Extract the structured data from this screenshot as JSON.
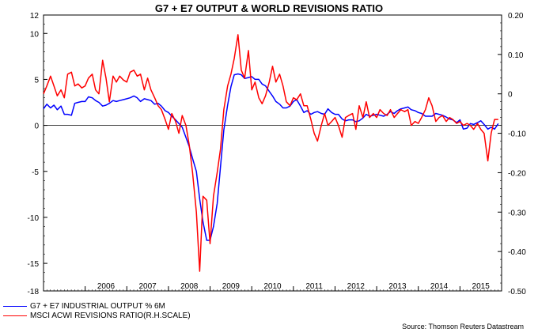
{
  "chart_data": {
    "type": "line",
    "title": "G7 + E7 OUTPUT & WORLD REVISIONS RATIO",
    "source": "Source: Thomson Reuters Datastream",
    "x_labels": [
      "2006",
      "2007",
      "2008",
      "2009",
      "2010",
      "2011",
      "2012",
      "2013",
      "2014",
      "2015"
    ],
    "x_range": [
      2005.0,
      2016.0
    ],
    "left_axis": {
      "ticks": [
        "12",
        "10",
        "5",
        "0",
        "-5",
        "-10",
        "-15",
        "-18"
      ],
      "tick_values": [
        12,
        10,
        5,
        0,
        -5,
        -10,
        -15,
        -18
      ],
      "range": [
        -18,
        12
      ]
    },
    "right_axis": {
      "ticks": [
        "0.20",
        "0.10",
        "0",
        "-0.10",
        "-0.20",
        "-0.30",
        "-0.40",
        "-0.50"
      ],
      "tick_values": [
        0.2,
        0.1,
        0,
        -0.1,
        -0.2,
        -0.3,
        -0.4,
        -0.5
      ],
      "range": [
        -0.5,
        0.2
      ]
    },
    "zero_line": true,
    "legend_position": "bottom-left",
    "series": [
      {
        "name": "G7 + E7 INDUSTRIAL OUTPUT % 6M",
        "axis": "left",
        "color": "#0000ff",
        "points": [
          [
            2005.0,
            1.8
          ],
          [
            2005.08,
            2.3
          ],
          [
            2005.17,
            1.9
          ],
          [
            2005.25,
            2.2
          ],
          [
            2005.33,
            1.7
          ],
          [
            2005.42,
            2.1
          ],
          [
            2005.5,
            1.2
          ],
          [
            2005.58,
            1.2
          ],
          [
            2005.67,
            1.1
          ],
          [
            2005.75,
            2.4
          ],
          [
            2005.83,
            2.5
          ],
          [
            2005.92,
            2.6
          ],
          [
            2006.0,
            2.6
          ],
          [
            2006.08,
            3.1
          ],
          [
            2006.17,
            3.0
          ],
          [
            2006.25,
            2.7
          ],
          [
            2006.33,
            2.5
          ],
          [
            2006.42,
            2.1
          ],
          [
            2006.5,
            2.2
          ],
          [
            2006.58,
            2.4
          ],
          [
            2006.67,
            2.7
          ],
          [
            2006.75,
            2.6
          ],
          [
            2006.83,
            2.7
          ],
          [
            2006.92,
            2.8
          ],
          [
            2007.0,
            2.9
          ],
          [
            2007.08,
            3.0
          ],
          [
            2007.17,
            3.2
          ],
          [
            2007.25,
            3.0
          ],
          [
            2007.33,
            2.6
          ],
          [
            2007.42,
            2.9
          ],
          [
            2007.5,
            2.8
          ],
          [
            2007.58,
            2.7
          ],
          [
            2007.67,
            2.3
          ],
          [
            2007.75,
            2.4
          ],
          [
            2007.83,
            2.1
          ],
          [
            2007.92,
            1.6
          ],
          [
            2008.0,
            1.4
          ],
          [
            2008.08,
            1.0
          ],
          [
            2008.17,
            0.6
          ],
          [
            2008.25,
            0.2
          ],
          [
            2008.33,
            -0.2
          ],
          [
            2008.42,
            -1.3
          ],
          [
            2008.5,
            -2.3
          ],
          [
            2008.58,
            -3.6
          ],
          [
            2008.67,
            -5.0
          ],
          [
            2008.75,
            -8.0
          ],
          [
            2008.83,
            -10.5
          ],
          [
            2008.92,
            -12.5
          ],
          [
            2009.0,
            -12.5
          ],
          [
            2009.08,
            -11.0
          ],
          [
            2009.17,
            -8.5
          ],
          [
            2009.25,
            -4.5
          ],
          [
            2009.33,
            -0.5
          ],
          [
            2009.42,
            2.2
          ],
          [
            2009.5,
            4.2
          ],
          [
            2009.58,
            5.5
          ],
          [
            2009.67,
            5.6
          ],
          [
            2009.75,
            5.5
          ],
          [
            2009.83,
            5.1
          ],
          [
            2009.92,
            5.2
          ],
          [
            2010.0,
            5.3
          ],
          [
            2010.08,
            5.0
          ],
          [
            2010.17,
            5.0
          ],
          [
            2010.25,
            4.5
          ],
          [
            2010.33,
            4.3
          ],
          [
            2010.42,
            3.7
          ],
          [
            2010.5,
            3.2
          ],
          [
            2010.58,
            2.6
          ],
          [
            2010.67,
            2.3
          ],
          [
            2010.75,
            1.9
          ],
          [
            2010.83,
            1.9
          ],
          [
            2010.92,
            2.1
          ],
          [
            2011.0,
            2.6
          ],
          [
            2011.08,
            2.8
          ],
          [
            2011.17,
            2.1
          ],
          [
            2011.25,
            1.4
          ],
          [
            2011.33,
            1.6
          ],
          [
            2011.42,
            1.2
          ],
          [
            2011.5,
            1.4
          ],
          [
            2011.58,
            1.5
          ],
          [
            2011.67,
            1.3
          ],
          [
            2011.75,
            1.2
          ],
          [
            2011.83,
            1.8
          ],
          [
            2011.92,
            1.4
          ],
          [
            2012.0,
            1.2
          ],
          [
            2012.08,
            1.2
          ],
          [
            2012.17,
            0.7
          ],
          [
            2012.25,
            0.5
          ],
          [
            2012.33,
            0.6
          ],
          [
            2012.42,
            0.6
          ],
          [
            2012.5,
            0.4
          ],
          [
            2012.58,
            0.5
          ],
          [
            2012.67,
            0.8
          ],
          [
            2012.75,
            1.2
          ],
          [
            2012.83,
            1.0
          ],
          [
            2012.92,
            1.1
          ],
          [
            2013.0,
            1.2
          ],
          [
            2013.08,
            1.1
          ],
          [
            2013.17,
            1.0
          ],
          [
            2013.25,
            1.2
          ],
          [
            2013.33,
            1.5
          ],
          [
            2013.42,
            1.3
          ],
          [
            2013.5,
            1.6
          ],
          [
            2013.58,
            1.8
          ],
          [
            2013.67,
            1.9
          ],
          [
            2013.75,
            2.0
          ],
          [
            2013.83,
            1.7
          ],
          [
            2013.92,
            1.6
          ],
          [
            2014.0,
            1.4
          ],
          [
            2014.08,
            1.3
          ],
          [
            2014.17,
            1.0
          ],
          [
            2014.25,
            1.0
          ],
          [
            2014.33,
            1.0
          ],
          [
            2014.42,
            1.3
          ],
          [
            2014.5,
            1.2
          ],
          [
            2014.58,
            1.1
          ],
          [
            2014.67,
            0.9
          ],
          [
            2014.75,
            0.7
          ],
          [
            2014.83,
            0.6
          ],
          [
            2014.92,
            0.3
          ],
          [
            2015.0,
            0.6
          ],
          [
            2015.08,
            -0.4
          ],
          [
            2015.17,
            -0.3
          ],
          [
            2015.25,
            0.2
          ],
          [
            2015.33,
            0.1
          ],
          [
            2015.42,
            0.3
          ],
          [
            2015.5,
            0.5
          ],
          [
            2015.58,
            0.1
          ],
          [
            2015.67,
            -0.4
          ],
          [
            2015.75,
            -0.2
          ],
          [
            2015.83,
            -0.4
          ],
          [
            2015.92,
            0.2
          ]
        ]
      },
      {
        "name": "MSCI ACWI REVISIONS RATIO(R.H.SCALE)",
        "axis": "right",
        "color": "#ff0000",
        "points": [
          [
            2005.0,
            0.0
          ],
          [
            2005.08,
            0.02
          ],
          [
            2005.17,
            0.045
          ],
          [
            2005.25,
            0.02
          ],
          [
            2005.33,
            -0.005
          ],
          [
            2005.42,
            0.01
          ],
          [
            2005.5,
            -0.01
          ],
          [
            2005.58,
            0.05
          ],
          [
            2005.67,
            0.055
          ],
          [
            2005.75,
            0.02
          ],
          [
            2005.83,
            0.025
          ],
          [
            2005.92,
            0.015
          ],
          [
            2006.0,
            0.02
          ],
          [
            2006.08,
            0.04
          ],
          [
            2006.17,
            0.05
          ],
          [
            2006.25,
            0.01
          ],
          [
            2006.33,
            0.0
          ],
          [
            2006.42,
            0.085
          ],
          [
            2006.5,
            0.04
          ],
          [
            2006.58,
            -0.02
          ],
          [
            2006.67,
            0.045
          ],
          [
            2006.75,
            0.03
          ],
          [
            2006.83,
            0.045
          ],
          [
            2006.92,
            0.035
          ],
          [
            2007.0,
            0.03
          ],
          [
            2007.08,
            0.055
          ],
          [
            2007.17,
            0.06
          ],
          [
            2007.25,
            0.045
          ],
          [
            2007.33,
            0.05
          ],
          [
            2007.42,
            0.01
          ],
          [
            2007.5,
            0.04
          ],
          [
            2007.58,
            0.01
          ],
          [
            2007.67,
            -0.01
          ],
          [
            2007.75,
            -0.03
          ],
          [
            2007.83,
            -0.04
          ],
          [
            2007.92,
            -0.065
          ],
          [
            2008.0,
            -0.09
          ],
          [
            2008.08,
            -0.05
          ],
          [
            2008.17,
            -0.07
          ],
          [
            2008.25,
            -0.1
          ],
          [
            2008.33,
            -0.055
          ],
          [
            2008.42,
            -0.08
          ],
          [
            2008.5,
            -0.13
          ],
          [
            2008.58,
            -0.2
          ],
          [
            2008.67,
            -0.3
          ],
          [
            2008.75,
            -0.45
          ],
          [
            2008.83,
            -0.26
          ],
          [
            2008.92,
            -0.27
          ],
          [
            2009.0,
            -0.38
          ],
          [
            2009.08,
            -0.26
          ],
          [
            2009.17,
            -0.2
          ],
          [
            2009.25,
            -0.14
          ],
          [
            2009.33,
            -0.04
          ],
          [
            2009.42,
            0.02
          ],
          [
            2009.5,
            0.05
          ],
          [
            2009.58,
            0.09
          ],
          [
            2009.67,
            0.15
          ],
          [
            2009.75,
            0.06
          ],
          [
            2009.83,
            0.04
          ],
          [
            2009.92,
            0.11
          ],
          [
            2010.0,
            0.01
          ],
          [
            2010.08,
            0.03
          ],
          [
            2010.17,
            -0.01
          ],
          [
            2010.25,
            -0.025
          ],
          [
            2010.33,
            -0.005
          ],
          [
            2010.42,
            0.03
          ],
          [
            2010.5,
            0.07
          ],
          [
            2010.58,
            0.03
          ],
          [
            2010.67,
            0.05
          ],
          [
            2010.75,
            0.02
          ],
          [
            2010.83,
            -0.02
          ],
          [
            2010.92,
            -0.03
          ],
          [
            2011.0,
            -0.01
          ],
          [
            2011.08,
            -0.015
          ],
          [
            2011.17,
            0.0
          ],
          [
            2011.25,
            -0.03
          ],
          [
            2011.33,
            -0.03
          ],
          [
            2011.42,
            -0.065
          ],
          [
            2011.5,
            -0.1
          ],
          [
            2011.58,
            -0.12
          ],
          [
            2011.67,
            -0.08
          ],
          [
            2011.75,
            -0.05
          ],
          [
            2011.83,
            -0.08
          ],
          [
            2011.92,
            -0.07
          ],
          [
            2012.0,
            -0.06
          ],
          [
            2012.08,
            -0.08
          ],
          [
            2012.17,
            -0.11
          ],
          [
            2012.25,
            -0.06
          ],
          [
            2012.33,
            -0.055
          ],
          [
            2012.42,
            -0.05
          ],
          [
            2012.5,
            -0.09
          ],
          [
            2012.58,
            -0.03
          ],
          [
            2012.67,
            -0.06
          ],
          [
            2012.75,
            -0.02
          ],
          [
            2012.83,
            -0.06
          ],
          [
            2012.92,
            -0.05
          ],
          [
            2013.0,
            -0.06
          ],
          [
            2013.08,
            -0.04
          ],
          [
            2013.17,
            -0.05
          ],
          [
            2013.25,
            -0.055
          ],
          [
            2013.33,
            -0.04
          ],
          [
            2013.42,
            -0.06
          ],
          [
            2013.5,
            -0.05
          ],
          [
            2013.58,
            -0.04
          ],
          [
            2013.67,
            -0.045
          ],
          [
            2013.75,
            -0.04
          ],
          [
            2013.83,
            -0.08
          ],
          [
            2013.92,
            -0.07
          ],
          [
            2014.0,
            -0.075
          ],
          [
            2014.08,
            -0.06
          ],
          [
            2014.17,
            -0.04
          ],
          [
            2014.25,
            -0.01
          ],
          [
            2014.33,
            -0.03
          ],
          [
            2014.42,
            -0.07
          ],
          [
            2014.5,
            -0.06
          ],
          [
            2014.58,
            -0.055
          ],
          [
            2014.67,
            -0.07
          ],
          [
            2014.75,
            -0.06
          ],
          [
            2014.83,
            -0.065
          ],
          [
            2014.92,
            -0.075
          ],
          [
            2015.0,
            -0.07
          ],
          [
            2015.08,
            -0.08
          ],
          [
            2015.17,
            -0.075
          ],
          [
            2015.25,
            -0.08
          ],
          [
            2015.33,
            -0.09
          ],
          [
            2015.42,
            -0.075
          ],
          [
            2015.5,
            -0.09
          ],
          [
            2015.58,
            -0.1
          ],
          [
            2015.67,
            -0.17
          ],
          [
            2015.75,
            -0.1
          ],
          [
            2015.83,
            -0.065
          ],
          [
            2015.92,
            -0.065
          ]
        ]
      }
    ]
  }
}
